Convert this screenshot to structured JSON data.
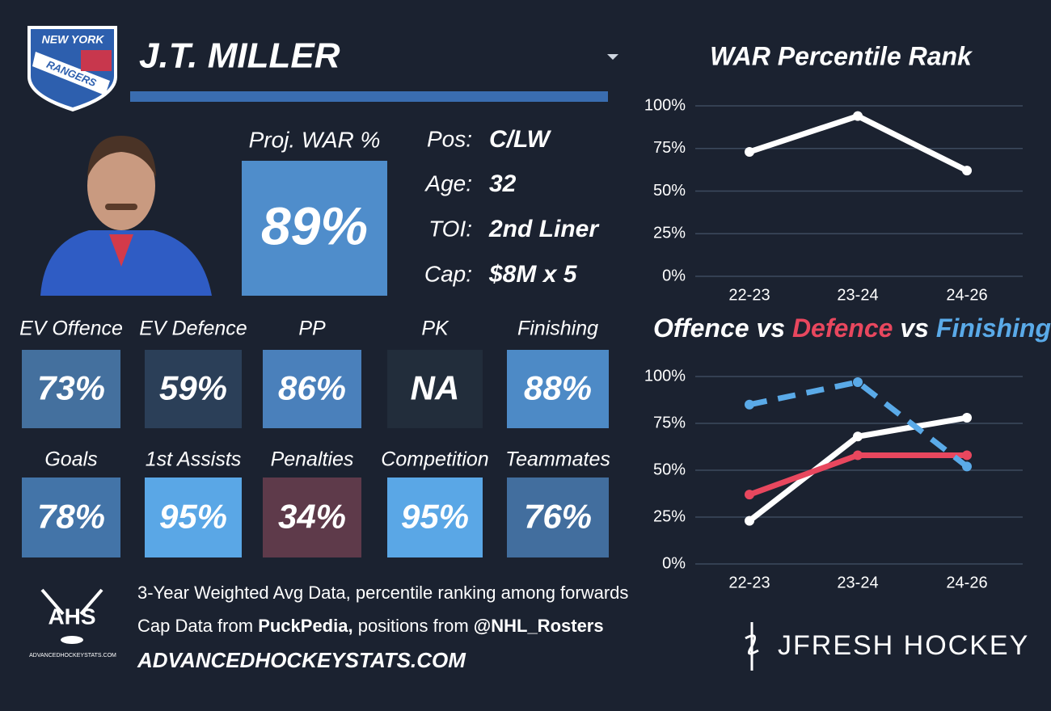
{
  "header": {
    "team_logo": {
      "top": "NEW YORK",
      "bottom": "RANGERS"
    },
    "player_name": "J.T. MILLER"
  },
  "projection": {
    "label": "Proj. WAR %",
    "value": "89%",
    "color": "#4f8dcb"
  },
  "bio": [
    {
      "label": "Pos:",
      "value": "C/LW"
    },
    {
      "label": "Age:",
      "value": "32"
    },
    {
      "label": "TOI:",
      "value": "2nd Liner"
    },
    {
      "label": "Cap:",
      "value": "$8M x 5"
    }
  ],
  "tiles": [
    {
      "label": "EV Offence",
      "value": "73%",
      "color": "#44709e"
    },
    {
      "label": "EV Defence",
      "value": "59%",
      "color": "#2b3f58"
    },
    {
      "label": "PP",
      "value": "86%",
      "color": "#4a80bb"
    },
    {
      "label": "PK",
      "value": "NA",
      "color": "#222d3b"
    },
    {
      "label": "Finishing",
      "value": "88%",
      "color": "#4d8ac6"
    },
    {
      "label": "Goals",
      "value": "78%",
      "color": "#4374a8"
    },
    {
      "label": "1st Assists",
      "value": "95%",
      "color": "#5aa7e6"
    },
    {
      "label": "Penalties",
      "value": "34%",
      "color": "#5e3a4a"
    },
    {
      "label": "Competition",
      "value": "95%",
      "color": "#5aa7e6"
    },
    {
      "label": "Teammates",
      "value": "76%",
      "color": "#426e9e"
    }
  ],
  "footer": {
    "note": "3-Year Weighted Avg Data, percentile ranking among forwards",
    "credits": {
      "prefix": "Cap Data from",
      "source": "PuckPedia,",
      "middle": "positions from",
      "handle": "@NHL_Rosters"
    },
    "ahs_logo": {
      "text": "AHS",
      "url": "ADVANCEDHOCKEYSTATS.COM"
    },
    "website": "ADVANCEDHOCKEYSTATS.COM",
    "brand": "JFRESH HOCKEY"
  },
  "chart_data": [
    {
      "type": "line",
      "title": "WAR Percentile Rank",
      "categories": [
        "22-23",
        "23-24",
        "24-26"
      ],
      "values": [
        73,
        94,
        62
      ],
      "color": "#ffffff",
      "ylim": [
        0,
        100
      ],
      "yticks": [
        {
          "value": 0,
          "label": "0%"
        },
        {
          "value": 25,
          "label": "25%"
        },
        {
          "value": 50,
          "label": "50%"
        },
        {
          "value": 75,
          "label": "75%"
        },
        {
          "value": 100,
          "label": "100%"
        }
      ],
      "grid": true
    },
    {
      "type": "line",
      "title_joiner": "vs",
      "categories": [
        "22-23",
        "23-24",
        "24-26"
      ],
      "series": [
        {
          "name": "Offence",
          "color": "#ffffff",
          "values": [
            23,
            68,
            78
          ],
          "style": "solid"
        },
        {
          "name": "Defence",
          "color": "#e8475e",
          "values": [
            37,
            58,
            58
          ],
          "style": "solid"
        },
        {
          "name": "Finishing",
          "color": "#5aaae8",
          "values": [
            85,
            97,
            52
          ],
          "style": "dashed"
        }
      ],
      "ylim": [
        0,
        100
      ],
      "yticks": [
        {
          "value": 0,
          "label": "0%"
        },
        {
          "value": 25,
          "label": "25%"
        },
        {
          "value": 50,
          "label": "50%"
        },
        {
          "value": 75,
          "label": "75%"
        },
        {
          "value": 100,
          "label": "100%"
        }
      ],
      "grid": true
    }
  ]
}
